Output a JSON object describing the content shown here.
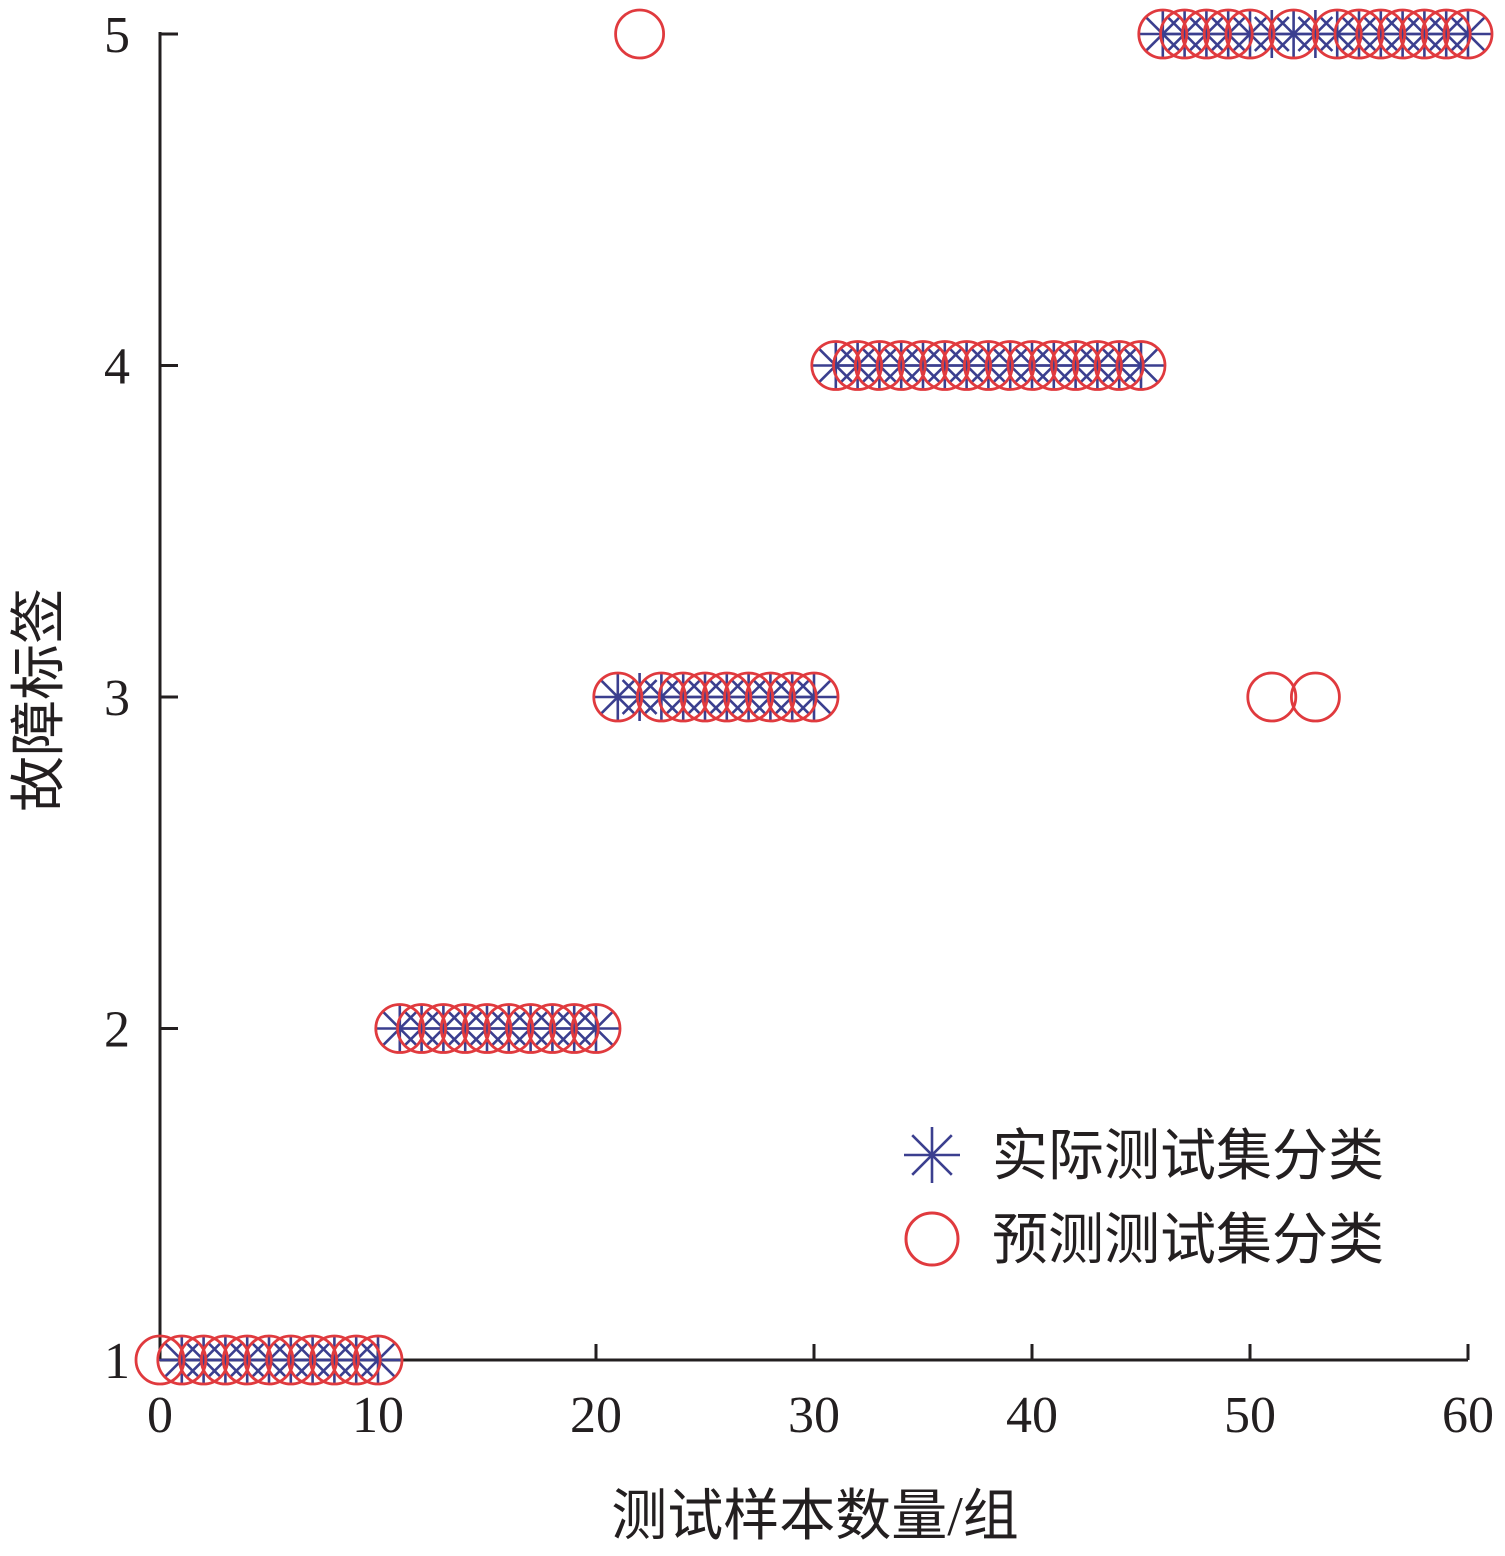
{
  "chart_data": {
    "type": "scatter",
    "xlabel": "测试样本数量/组",
    "ylabel": "故障标签",
    "xlim": [
      0,
      60
    ],
    "ylim": [
      1,
      5
    ],
    "xticks": [
      0,
      10,
      20,
      30,
      40,
      50,
      60
    ],
    "yticks": [
      1,
      2,
      3,
      4,
      5
    ],
    "grid": false,
    "legend_position": "bottom-right",
    "series": [
      {
        "name": "实际测试集分类",
        "marker": "asterisk",
        "color": "#3b3f8f",
        "x": [
          1,
          2,
          3,
          4,
          5,
          6,
          7,
          8,
          9,
          10,
          11,
          12,
          13,
          14,
          15,
          16,
          17,
          18,
          19,
          20,
          21,
          22,
          23,
          24,
          25,
          26,
          27,
          28,
          29,
          30,
          31,
          32,
          33,
          34,
          35,
          36,
          37,
          38,
          39,
          40,
          41,
          42,
          43,
          44,
          45,
          46,
          47,
          48,
          49,
          50,
          51,
          52,
          53,
          54,
          55,
          56,
          57,
          58,
          59,
          60
        ],
        "y": [
          1,
          1,
          1,
          1,
          1,
          1,
          1,
          1,
          1,
          1,
          2,
          2,
          2,
          2,
          2,
          2,
          2,
          2,
          2,
          2,
          3,
          3,
          3,
          3,
          3,
          3,
          3,
          3,
          3,
          3,
          4,
          4,
          4,
          4,
          4,
          4,
          4,
          4,
          4,
          4,
          4,
          4,
          4,
          4,
          4,
          5,
          5,
          5,
          5,
          5,
          5,
          5,
          5,
          5,
          5,
          5,
          5,
          5,
          5,
          5
        ]
      },
      {
        "name": "预测测试集分类",
        "marker": "circle",
        "color": "#e03a3e",
        "x": [
          0,
          1,
          2,
          3,
          4,
          5,
          6,
          7,
          8,
          9,
          10,
          11,
          12,
          13,
          14,
          15,
          16,
          17,
          18,
          19,
          20,
          21,
          22,
          23,
          24,
          25,
          26,
          27,
          28,
          29,
          30,
          31,
          32,
          33,
          34,
          35,
          36,
          37,
          38,
          39,
          40,
          41,
          42,
          43,
          44,
          45,
          46,
          47,
          48,
          49,
          50,
          51,
          52,
          53,
          54,
          55,
          56,
          57,
          58,
          59,
          60
        ],
        "y": [
          1,
          1,
          1,
          1,
          1,
          1,
          1,
          1,
          1,
          1,
          1,
          2,
          2,
          2,
          2,
          2,
          2,
          2,
          2,
          2,
          2,
          3,
          5,
          3,
          3,
          3,
          3,
          3,
          3,
          3,
          3,
          4,
          4,
          4,
          4,
          4,
          4,
          4,
          4,
          4,
          4,
          4,
          4,
          4,
          4,
          4,
          5,
          5,
          5,
          5,
          5,
          3,
          5,
          3,
          5,
          5,
          5,
          5,
          5,
          5,
          5
        ]
      }
    ]
  }
}
